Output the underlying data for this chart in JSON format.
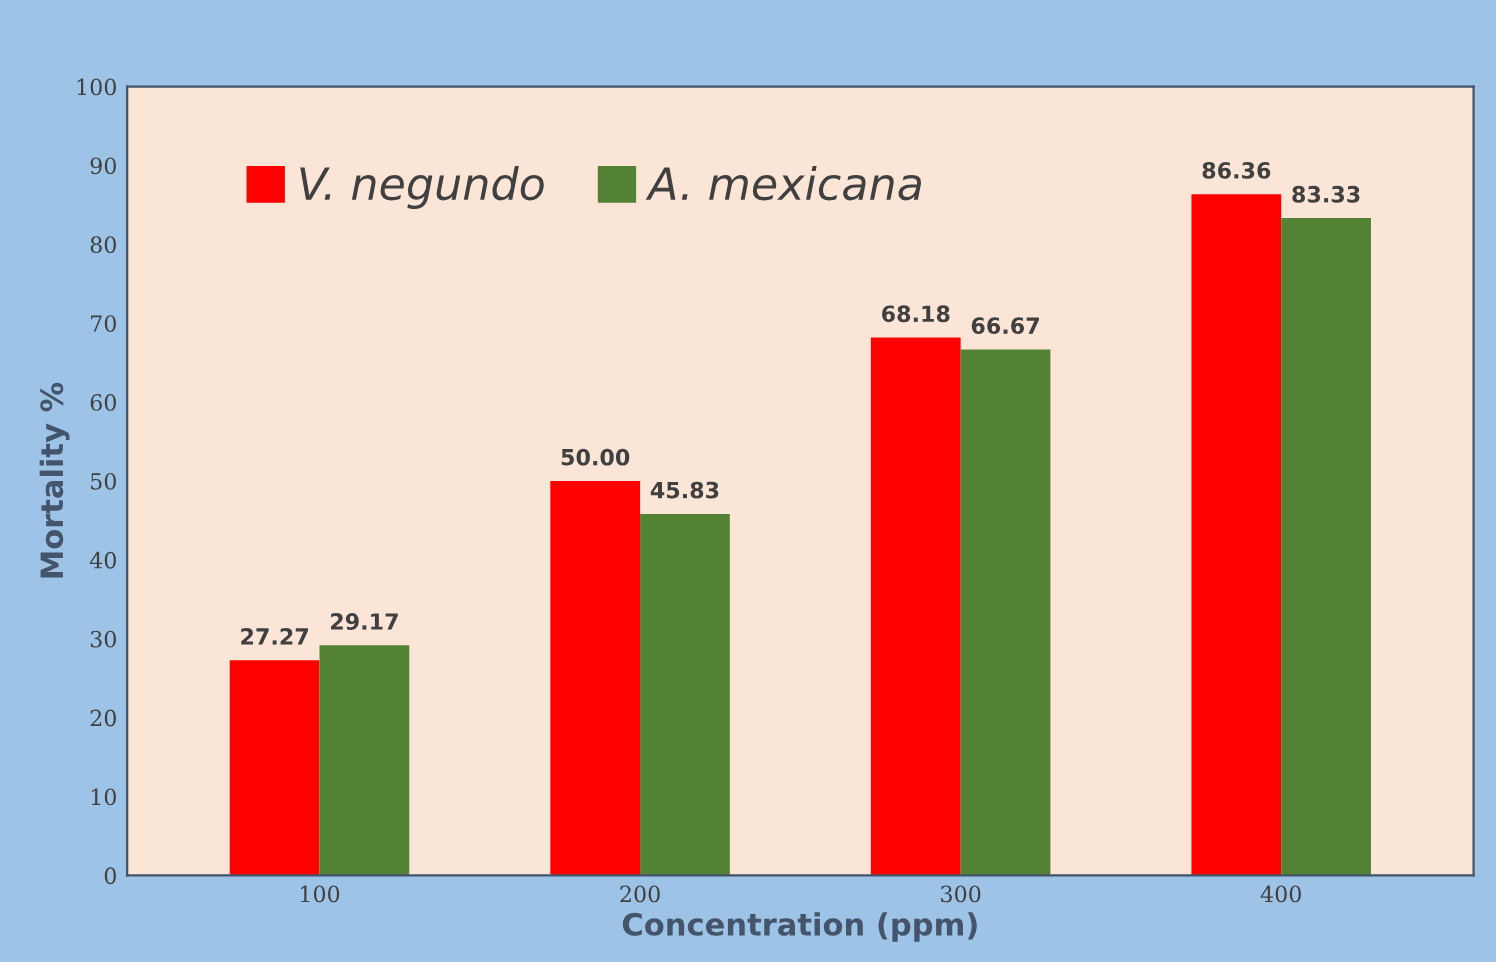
{
  "chart_data": {
    "type": "bar",
    "xlabel": "Concentration (ppm)",
    "ylabel": "Mortality %",
    "categories": [
      "100",
      "200",
      "300",
      "400"
    ],
    "series": [
      {
        "name": "V. negundo",
        "color": "#ff0000",
        "values": [
          27.27,
          50.0,
          68.18,
          86.36
        ],
        "value_labels": [
          "27.27",
          "50.00",
          "68.18",
          "86.36"
        ]
      },
      {
        "name": "A. mexicana",
        "color": "#548235",
        "values": [
          29.17,
          45.83,
          66.67,
          83.33
        ],
        "value_labels": [
          "29.17",
          "45.83",
          "66.67",
          "83.33"
        ]
      }
    ],
    "ylim": [
      0,
      100
    ],
    "yticks": [
      0,
      10,
      20,
      30,
      40,
      50,
      60,
      70,
      80,
      90,
      100
    ],
    "grid": false,
    "legend": "top left"
  }
}
